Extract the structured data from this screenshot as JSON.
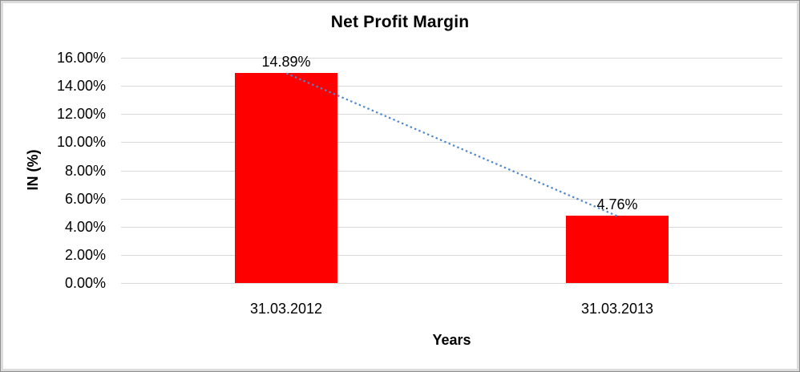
{
  "chart_data": {
    "type": "bar",
    "title": "Net Profit Margin",
    "xlabel": "Years",
    "ylabel": "IN (%)",
    "categories": [
      "31.03.2012",
      "31.03.2013"
    ],
    "values": [
      14.89,
      4.76
    ],
    "data_labels": [
      "14.89%",
      "4.76%"
    ],
    "ylim": [
      0,
      16
    ],
    "ytick_step": 2,
    "ytick_labels": [
      "0.00%",
      "2.00%",
      "4.00%",
      "6.00%",
      "8.00%",
      "10.00%",
      "12.00%",
      "14.00%",
      "16.00%"
    ],
    "grid": true,
    "legend": "none",
    "bar_color": "#FF0000",
    "gridline_color": "#D9D9D9",
    "text_color": "#000000",
    "trendline": {
      "type": "linear",
      "style": "dotted",
      "color": "#4F86C6"
    }
  }
}
